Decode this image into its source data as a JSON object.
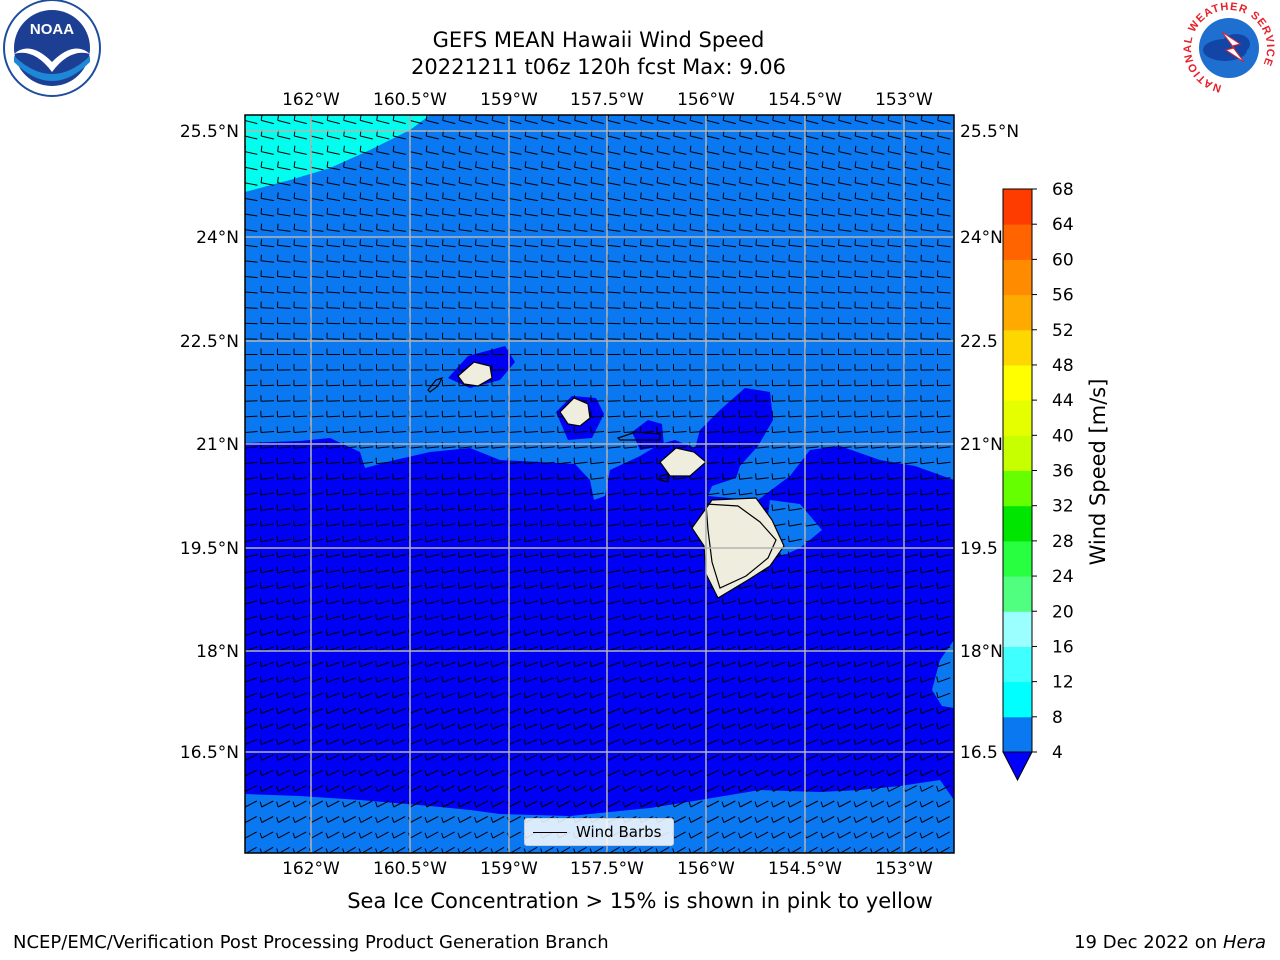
{
  "title": {
    "line1": "GEFS MEAN Hawaii Wind Speed",
    "line2": "20221211 t06z 120h fcst   Max: 9.06"
  },
  "logos": {
    "left": "NOAA",
    "right_ring": "NATIONAL WEATHER SERVICE"
  },
  "map": {
    "lon_labels": [
      "162°W",
      "160.5°W",
      "159°W",
      "157.5°W",
      "156°W",
      "154.5°W",
      "153°W"
    ],
    "lat_labels": [
      "25.5°N",
      "24°N",
      "22.5°N",
      "21°N",
      "19.5°N",
      "18°N",
      "16.5°N"
    ],
    "right_lat_labels": [
      "25.5°N",
      "24°N",
      "22.5",
      "21°N",
      "19.5",
      "18°N",
      "16.5"
    ],
    "legend_label": "Wind Barbs",
    "colors": {
      "speed_4_8": "#0a78f0",
      "speed_below_4": "#0000f5",
      "speed_8_12": "#00ffee",
      "land": "#eeedde",
      "grid": "#b4b4b4"
    }
  },
  "colorbar": {
    "label": "Wind Speed [m/s]",
    "ticks": [
      "68",
      "64",
      "60",
      "56",
      "52",
      "48",
      "44",
      "40",
      "36",
      "32",
      "28",
      "24",
      "20",
      "16",
      "12",
      "8",
      "4"
    ],
    "colors": [
      "#0000ff",
      "#0a78f0",
      "#00ffff",
      "#40ffff",
      "#9cffff",
      "#50ff80",
      "#28ff40",
      "#00e600",
      "#66ff00",
      "#c8ff00",
      "#e6ff00",
      "#ffff00",
      "#ffd700",
      "#ffaa00",
      "#ff8c00",
      "#ff6400",
      "#ff3c00",
      "#ff0000"
    ]
  },
  "footer": {
    "note": "Sea Ice Concentration > 15% is shown in pink to yellow",
    "left": "NCEP/EMC/Verification Post Processing Product Generation Branch",
    "right_prefix": "19 Dec 2022 on ",
    "right_host": "Hera"
  }
}
